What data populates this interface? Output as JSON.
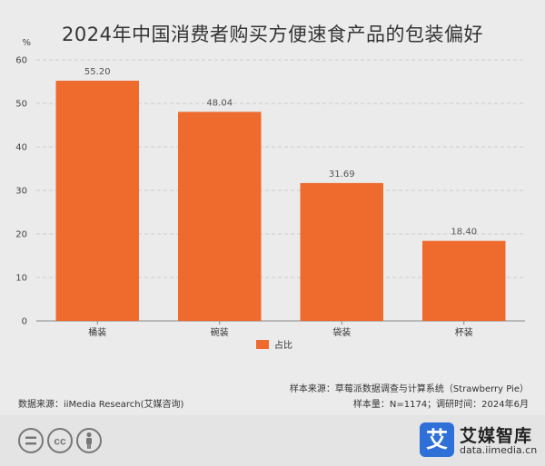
{
  "colors": {
    "bar": "#ee6a2d",
    "grid": "#cccccc",
    "axis": "#888888",
    "brand": "#2e6fd8"
  },
  "chart_data": {
    "type": "bar",
    "title": "2024年中国消费者购买方便速食产品的包装偏好",
    "unit": "%",
    "categories": [
      "桶装",
      "碗装",
      "袋装",
      "杯装"
    ],
    "series": [
      {
        "name": "占比",
        "values": [
          55.2,
          48.04,
          31.69,
          18.4
        ]
      }
    ],
    "data_labels": [
      "55.20",
      "48.04",
      "31.69",
      "18.40"
    ],
    "y_ticks": [
      "0",
      "10",
      "20",
      "30",
      "40",
      "50",
      "60"
    ],
    "ylim": [
      0,
      60
    ],
    "grid": true,
    "legend_position": "bottom-center"
  },
  "notes": {
    "sample_source": "样本来源：草莓派数据调查与计算系统（Strawberry Pie）",
    "data_source": "数据来源：iiMedia Research(艾媒咨询)",
    "sample_size": "样本量：N=1174；调研时间：2024年6月"
  },
  "footer": {
    "license_icons": [
      "equals-icon",
      "cc-icon",
      "person-icon"
    ],
    "brand_mark": "艾",
    "brand_name": "艾媒智库",
    "brand_url": "data.iimedia.cn"
  }
}
